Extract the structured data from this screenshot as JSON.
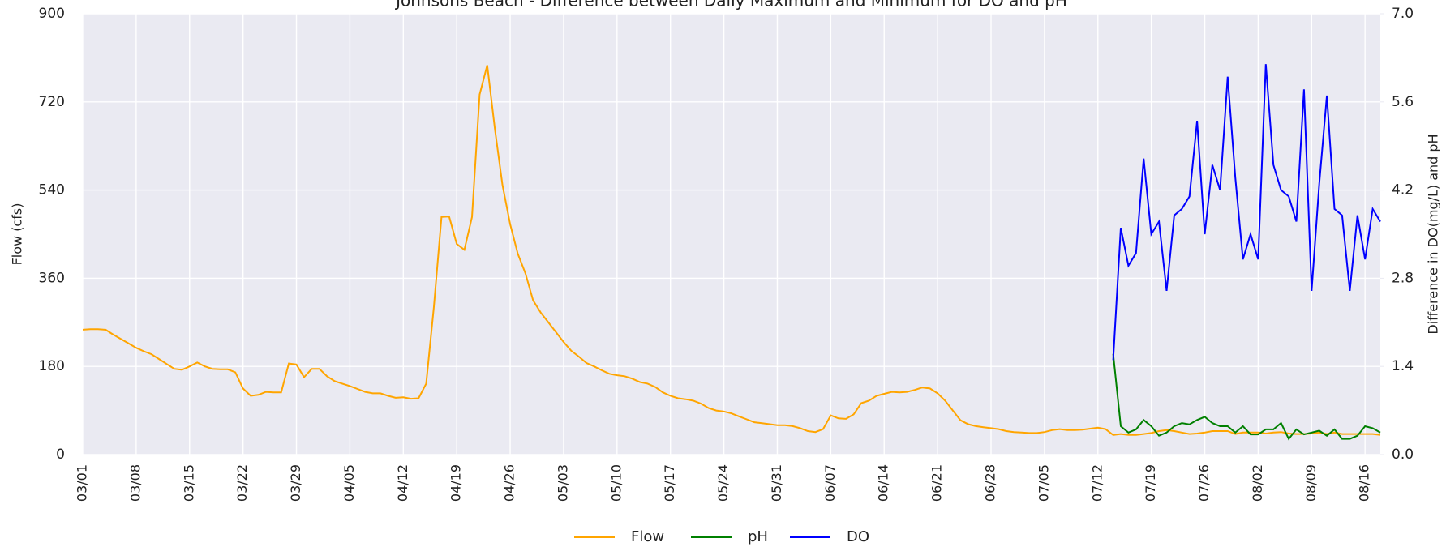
{
  "chart_data": {
    "type": "line",
    "title": "Johnsons Beach - Difference between Daily Maximum and Minimum for DO and pH",
    "y_label": "Flow (cfs)",
    "y2_label": "Difference in DO(mg/L) and pH",
    "x": [
      "03/01",
      null,
      null,
      null,
      null,
      null,
      null,
      "03/08",
      null,
      null,
      null,
      null,
      null,
      null,
      "03/15",
      null,
      null,
      null,
      null,
      null,
      null,
      "03/22",
      null,
      null,
      null,
      null,
      null,
      null,
      "03/29",
      null,
      null,
      null,
      null,
      null,
      null,
      "04/05",
      null,
      null,
      null,
      null,
      null,
      null,
      "04/12",
      null,
      null,
      null,
      null,
      null,
      null,
      "04/19",
      null,
      null,
      null,
      null,
      null,
      null,
      "04/26",
      null,
      null,
      null,
      null,
      null,
      null,
      "05/03",
      null,
      null,
      null,
      null,
      null,
      null,
      "05/10",
      null,
      null,
      null,
      null,
      null,
      null,
      "05/17",
      null,
      null,
      null,
      null,
      null,
      null,
      "05/24",
      null,
      null,
      null,
      null,
      null,
      null,
      "05/31",
      null,
      null,
      null,
      null,
      null,
      null,
      "06/07",
      null,
      null,
      null,
      null,
      null,
      null,
      "06/14",
      null,
      null,
      null,
      null,
      null,
      null,
      "06/21",
      null,
      null,
      null,
      null,
      null,
      null,
      "06/28",
      null,
      null,
      null,
      null,
      null,
      null,
      "07/05",
      null,
      null,
      null,
      null,
      null,
      null,
      "07/12",
      null,
      null,
      null,
      null,
      null,
      null,
      "07/19",
      null,
      null,
      null,
      null,
      null,
      null,
      "07/26",
      null,
      null,
      null,
      null,
      null,
      null,
      "08/02",
      null,
      null,
      null,
      null,
      null,
      null,
      "08/09",
      null,
      null,
      null,
      null,
      null,
      null,
      "08/16",
      null,
      null
    ],
    "series": [
      {
        "name": "Flow",
        "color": "#ffa500",
        "values": [
          255,
          256,
          256,
          255,
          245,
          236,
          227,
          218,
          211,
          205,
          195,
          185,
          175,
          173,
          180,
          188,
          180,
          175,
          174,
          174,
          168,
          135,
          120,
          122,
          128,
          127,
          127,
          186,
          184,
          158,
          175,
          175,
          160,
          150,
          145,
          140,
          134,
          128,
          125,
          125,
          120,
          116,
          117,
          114,
          115,
          145,
          300,
          485,
          486,
          430,
          418,
          485,
          735,
          795,
          665,
          550,
          470,
          410,
          370,
          315,
          290,
          270,
          250,
          230,
          212,
          200,
          187,
          180,
          172,
          165,
          162,
          160,
          155,
          148,
          145,
          138,
          127,
          120,
          115,
          113,
          110,
          104,
          95,
          90,
          88,
          84,
          78,
          72,
          66,
          64,
          62,
          60,
          60,
          58,
          54,
          48,
          46,
          52,
          80,
          74,
          73,
          82,
          105,
          110,
          120,
          124,
          128,
          127,
          128,
          132,
          137,
          135,
          125,
          110,
          90,
          70,
          62,
          58,
          56,
          54,
          52,
          48,
          46,
          45,
          44,
          44,
          46,
          50,
          52,
          50,
          50,
          51,
          53,
          55,
          52,
          40,
          42,
          40,
          40,
          42,
          44,
          48,
          50,
          48,
          45,
          42,
          43,
          45,
          48,
          48,
          48,
          42,
          45,
          45,
          45,
          43,
          45,
          46,
          43,
          42,
          42,
          43,
          45,
          42,
          45,
          42,
          42,
          42,
          42,
          42,
          40
        ]
      },
      {
        "name": "pH",
        "color": "#008000",
        "axis": "y2",
        "values": [
          null,
          null,
          null,
          null,
          null,
          null,
          null,
          null,
          null,
          null,
          null,
          null,
          null,
          null,
          null,
          null,
          null,
          null,
          null,
          null,
          null,
          null,
          null,
          null,
          null,
          null,
          null,
          null,
          null,
          null,
          null,
          null,
          null,
          null,
          null,
          null,
          null,
          null,
          null,
          null,
          null,
          null,
          null,
          null,
          null,
          null,
          null,
          null,
          null,
          null,
          null,
          null,
          null,
          null,
          null,
          null,
          null,
          null,
          null,
          null,
          null,
          null,
          null,
          null,
          null,
          null,
          null,
          null,
          null,
          null,
          null,
          null,
          null,
          null,
          null,
          null,
          null,
          null,
          null,
          null,
          null,
          null,
          null,
          null,
          null,
          null,
          null,
          null,
          null,
          null,
          null,
          null,
          null,
          null,
          null,
          null,
          null,
          null,
          null,
          null,
          null,
          null,
          null,
          null,
          null,
          null,
          null,
          null,
          null,
          null,
          null,
          null,
          null,
          null,
          null,
          null,
          null,
          null,
          null,
          null,
          null,
          null,
          null,
          null,
          null,
          null,
          null,
          null,
          null,
          null,
          null,
          null,
          null,
          null,
          null,
          1.6,
          0.45,
          0.35,
          0.4,
          0.55,
          0.45,
          0.3,
          0.35,
          0.45,
          0.5,
          0.48,
          0.55,
          0.6,
          0.5,
          0.45,
          0.45,
          0.35,
          0.45,
          0.32,
          0.32,
          0.4,
          0.4,
          0.5,
          0.25,
          0.4,
          0.32,
          0.35,
          0.38,
          0.3,
          0.4,
          0.25,
          0.25,
          0.3,
          0.45,
          0.42,
          0.35
        ]
      },
      {
        "name": "DO",
        "color": "#0000ff",
        "axis": "y2",
        "values": [
          null,
          null,
          null,
          null,
          null,
          null,
          null,
          null,
          null,
          null,
          null,
          null,
          null,
          null,
          null,
          null,
          null,
          null,
          null,
          null,
          null,
          null,
          null,
          null,
          null,
          null,
          null,
          null,
          null,
          null,
          null,
          null,
          null,
          null,
          null,
          null,
          null,
          null,
          null,
          null,
          null,
          null,
          null,
          null,
          null,
          null,
          null,
          null,
          null,
          null,
          null,
          null,
          null,
          null,
          null,
          null,
          null,
          null,
          null,
          null,
          null,
          null,
          null,
          null,
          null,
          null,
          null,
          null,
          null,
          null,
          null,
          null,
          null,
          null,
          null,
          null,
          null,
          null,
          null,
          null,
          null,
          null,
          null,
          null,
          null,
          null,
          null,
          null,
          null,
          null,
          null,
          null,
          null,
          null,
          null,
          null,
          null,
          null,
          null,
          null,
          null,
          null,
          null,
          null,
          null,
          null,
          null,
          null,
          null,
          null,
          null,
          null,
          null,
          null,
          null,
          null,
          null,
          null,
          null,
          null,
          null,
          null,
          null,
          null,
          null,
          null,
          null,
          null,
          null,
          null,
          null,
          null,
          null,
          null,
          null,
          1.5,
          3.6,
          3.0,
          3.2,
          4.7,
          3.5,
          3.7,
          2.6,
          3.8,
          3.9,
          4.1,
          5.3,
          3.5,
          4.6,
          4.2,
          6.0,
          4.4,
          3.1,
          3.5,
          3.1,
          6.2,
          4.6,
          4.2,
          4.1,
          3.7,
          5.8,
          2.6,
          4.3,
          5.7,
          3.9,
          3.8,
          2.6,
          3.8,
          3.1,
          3.9,
          3.7
        ]
      }
    ],
    "ylim": [
      0,
      900
    ],
    "yticks": [
      0,
      180,
      360,
      540,
      720,
      900
    ],
    "y2lim": [
      0,
      7
    ],
    "y2ticks": [
      {
        "value": 0,
        "label": "0.0"
      },
      1.4,
      2.8,
      4.2,
      5.6,
      {
        "value": 7,
        "label": "7.0"
      }
    ],
    "grid": true,
    "legend": "bottom"
  }
}
